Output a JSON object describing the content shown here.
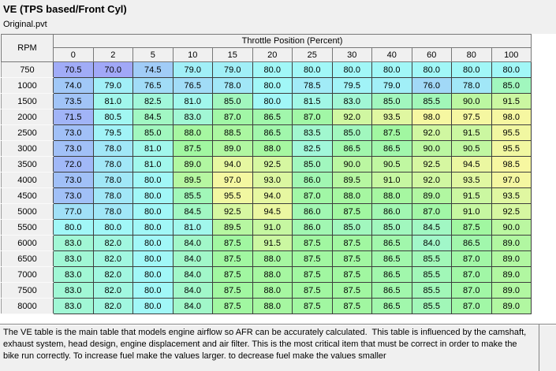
{
  "window": {
    "title": "VE (TPS based/Front Cyl)",
    "subtitle": "Original.pvt"
  },
  "table": {
    "corner_label": "RPM",
    "column_group_label": "Throttle Position (Percent)",
    "tps_columns": [
      "0",
      "2",
      "5",
      "10",
      "15",
      "20",
      "25",
      "30",
      "40",
      "60",
      "80",
      "100"
    ],
    "rows": [
      {
        "rpm": "750",
        "values": [
          70.5,
          70.0,
          74.5,
          79.0,
          79.0,
          80.0,
          80.0,
          80.0,
          80.0,
          80.0,
          80.0,
          80.0
        ]
      },
      {
        "rpm": "1000",
        "values": [
          74.0,
          79.0,
          76.5,
          76.5,
          78.0,
          80.0,
          78.5,
          79.5,
          79.0,
          76.0,
          78.0,
          85.0
        ]
      },
      {
        "rpm": "1500",
        "values": [
          73.5,
          81.0,
          82.5,
          81.0,
          85.0,
          80.0,
          81.5,
          83.0,
          85.0,
          85.5,
          90.0,
          91.5
        ]
      },
      {
        "rpm": "2000",
        "values": [
          71.5,
          80.5,
          84.5,
          83.0,
          87.0,
          86.5,
          87.0,
          92.0,
          93.5,
          98.0,
          97.5,
          98.0
        ]
      },
      {
        "rpm": "2500",
        "values": [
          73.0,
          79.5,
          85.0,
          88.0,
          88.5,
          86.5,
          83.5,
          85.0,
          87.5,
          92.0,
          91.5,
          95.5
        ]
      },
      {
        "rpm": "3000",
        "values": [
          73.0,
          78.0,
          81.0,
          87.5,
          89.0,
          88.0,
          82.5,
          86.5,
          86.5,
          90.0,
          90.5,
          95.5
        ]
      },
      {
        "rpm": "3500",
        "values": [
          72.0,
          78.0,
          81.0,
          89.0,
          94.0,
          92.5,
          85.0,
          90.0,
          90.5,
          92.5,
          94.5,
          98.5
        ]
      },
      {
        "rpm": "4000",
        "values": [
          73.0,
          78.0,
          80.0,
          89.5,
          97.0,
          93.0,
          86.0,
          89.5,
          91.0,
          92.0,
          93.5,
          97.0
        ]
      },
      {
        "rpm": "4500",
        "values": [
          73.0,
          78.0,
          80.0,
          85.5,
          95.5,
          94.0,
          87.0,
          88.0,
          88.0,
          89.0,
          91.5,
          93.5
        ]
      },
      {
        "rpm": "5000",
        "values": [
          77.0,
          78.0,
          80.0,
          84.5,
          92.5,
          94.5,
          86.0,
          87.5,
          86.0,
          87.0,
          91.0,
          92.5
        ]
      },
      {
        "rpm": "5500",
        "values": [
          80.0,
          80.0,
          80.0,
          81.0,
          89.5,
          91.0,
          86.0,
          85.0,
          85.0,
          84.5,
          87.5,
          90.0
        ]
      },
      {
        "rpm": "6000",
        "values": [
          83.0,
          82.0,
          80.0,
          84.0,
          87.5,
          91.5,
          87.5,
          87.5,
          86.5,
          84.0,
          86.5,
          89.0
        ]
      },
      {
        "rpm": "6500",
        "values": [
          83.0,
          82.0,
          80.0,
          84.0,
          87.5,
          88.0,
          87.5,
          87.5,
          86.5,
          85.5,
          87.0,
          89.0
        ]
      },
      {
        "rpm": "7000",
        "values": [
          83.0,
          82.0,
          80.0,
          84.0,
          87.5,
          88.0,
          87.5,
          87.5,
          86.5,
          85.5,
          87.0,
          89.0
        ]
      },
      {
        "rpm": "7500",
        "values": [
          83.0,
          82.0,
          80.0,
          84.0,
          87.5,
          88.0,
          87.5,
          87.5,
          86.5,
          85.5,
          87.0,
          89.0
        ]
      },
      {
        "rpm": "8000",
        "values": [
          83.0,
          82.0,
          80.0,
          84.0,
          87.5,
          88.0,
          87.5,
          87.5,
          86.5,
          85.5,
          87.0,
          89.0
        ]
      }
    ]
  },
  "description": "The VE table is the main table that models engine airflow so AFR can be accurately calculated.  This table is influenced by the camshaft, exhaust system, head design, engine displacement and air filter. This is the most critical item that must be correct in order to make the bike run correctly. To increase fuel make the values larger. to decrease fuel make the values smaller",
  "colors": {
    "panel_bg": "#f0f0f0",
    "page_bg": "#ffffff",
    "grid_border": "#3d3d3d",
    "header_border": "#787878",
    "heatmap": {
      "hue_stops": [
        [
          70,
          235
        ],
        [
          80,
          180
        ],
        [
          87.5,
          120
        ],
        [
          95,
          65
        ],
        [
          100,
          58
        ]
      ],
      "saturation": 85,
      "lightness": 80
    }
  }
}
